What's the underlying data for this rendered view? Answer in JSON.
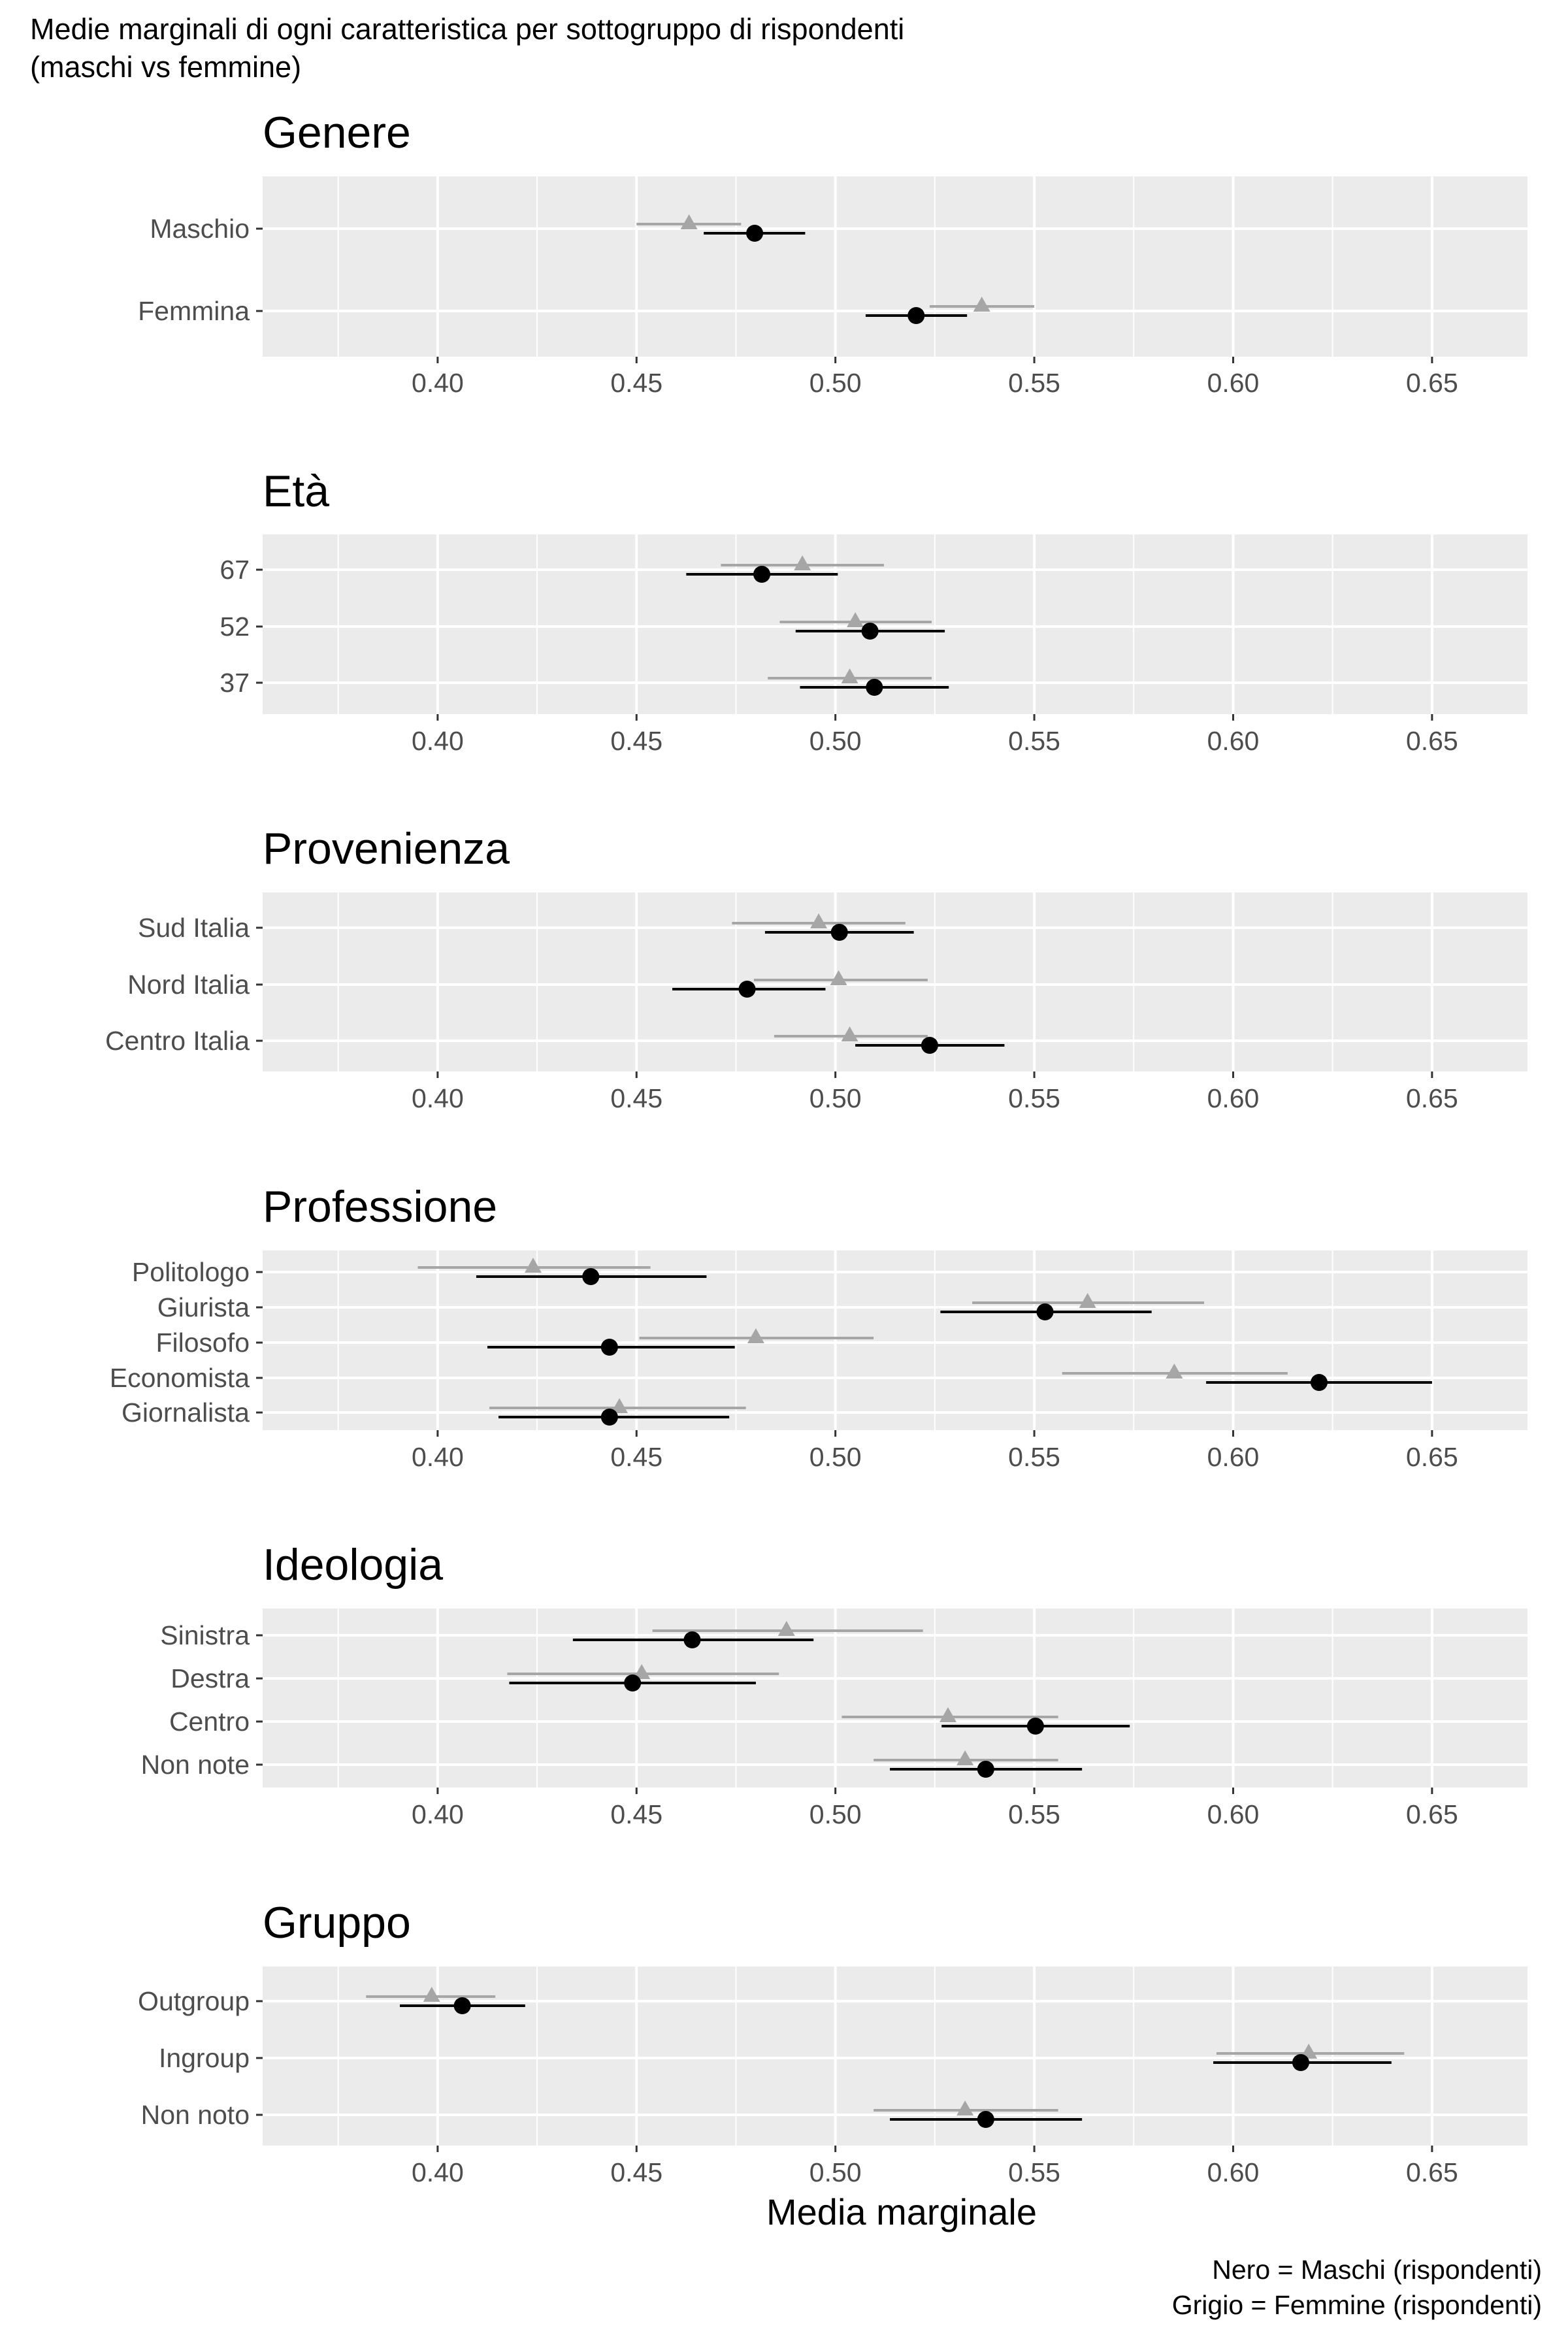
{
  "header": {
    "title_line1": "Medie marginali di ogni caratteristica per sottogruppo di rispondenti",
    "title_line2": "(maschi vs femmine)"
  },
  "caption": {
    "line1": "Nero = Maschi (rispondenti)",
    "line2": "Grigio = Femmine (rispondenti)"
  },
  "colors": {
    "panel_background": "#ebebeb",
    "gridline": "#ffffff",
    "maschi": "#000000",
    "femmine": "#a6a6a6",
    "tick_text": "#4d4d4d"
  },
  "chart_data": {
    "type": "scatter",
    "subtype": "point-range (marginal means with confidence intervals), faceted",
    "xlabel": "Media marginale",
    "xlim": [
      0.356,
      0.674
    ],
    "xticks": [
      "0.40",
      "0.45",
      "0.50",
      "0.55",
      "0.60",
      "0.65"
    ],
    "grid": true,
    "legend": "none (caption bottom-right)",
    "series": [
      {
        "key": "maschi",
        "marker": "circle"
      },
      {
        "key": "femmine",
        "marker": "triangle"
      }
    ],
    "panels": [
      {
        "title": "Genere",
        "categories": [
          "Maschio",
          "Femmina"
        ],
        "maschi": [
          {
            "estimate": 0.4797,
            "lower": 0.4669,
            "upper": 0.4924
          },
          {
            "estimate": 0.5203,
            "lower": 0.5076,
            "upper": 0.5331
          }
        ],
        "femmine": [
          {
            "estimate": 0.4632,
            "lower": 0.45,
            "upper": 0.4763
          },
          {
            "estimate": 0.5368,
            "lower": 0.5237,
            "upper": 0.55
          }
        ]
      },
      {
        "title": "Età",
        "categories": [
          "67",
          "52",
          "37"
        ],
        "maschi": [
          {
            "estimate": 0.4815,
            "lower": 0.4625,
            "upper": 0.5006
          },
          {
            "estimate": 0.5087,
            "lower": 0.49,
            "upper": 0.5275
          },
          {
            "estimate": 0.5098,
            "lower": 0.4911,
            "upper": 0.5285
          }
        ],
        "femmine": [
          {
            "estimate": 0.4917,
            "lower": 0.4712,
            "upper": 0.5122
          },
          {
            "estimate": 0.505,
            "lower": 0.486,
            "upper": 0.5242
          },
          {
            "estimate": 0.5036,
            "lower": 0.483,
            "upper": 0.5242
          }
        ]
      },
      {
        "title": "Provenienza",
        "categories": [
          "Sud Italia",
          "Nord Italia",
          "Centro Italia"
        ],
        "maschi": [
          {
            "estimate": 0.501,
            "lower": 0.4823,
            "upper": 0.5197
          },
          {
            "estimate": 0.4778,
            "lower": 0.459,
            "upper": 0.4975
          },
          {
            "estimate": 0.5237,
            "lower": 0.505,
            "upper": 0.5425
          }
        ],
        "femmine": [
          {
            "estimate": 0.4958,
            "lower": 0.474,
            "upper": 0.5176
          },
          {
            "estimate": 0.5008,
            "lower": 0.4795,
            "upper": 0.5232
          },
          {
            "estimate": 0.5036,
            "lower": 0.4846,
            "upper": 0.5232
          }
        ]
      },
      {
        "title": "Professione",
        "categories": [
          "Politologo",
          "Giurista",
          "Filosofo",
          "Economista",
          "Giornalista"
        ],
        "maschi": [
          {
            "estimate": 0.4385,
            "lower": 0.4097,
            "upper": 0.4676
          },
          {
            "estimate": 0.5527,
            "lower": 0.5264,
            "upper": 0.5795
          },
          {
            "estimate": 0.4432,
            "lower": 0.4125,
            "upper": 0.4747
          },
          {
            "estimate": 0.6216,
            "lower": 0.5932,
            "upper": 0.65
          },
          {
            "estimate": 0.4432,
            "lower": 0.4153,
            "upper": 0.4733
          }
        ],
        "femmine": [
          {
            "estimate": 0.424,
            "lower": 0.395,
            "upper": 0.4535
          },
          {
            "estimate": 0.5634,
            "lower": 0.5344,
            "upper": 0.5927
          },
          {
            "estimate": 0.48,
            "lower": 0.4507,
            "upper": 0.5096
          },
          {
            "estimate": 0.5852,
            "lower": 0.557,
            "upper": 0.6137
          },
          {
            "estimate": 0.4457,
            "lower": 0.413,
            "upper": 0.4775
          }
        ]
      },
      {
        "title": "Ideologia",
        "categories": [
          "Sinistra",
          "Destra",
          "Centro",
          "Non note"
        ],
        "maschi": [
          {
            "estimate": 0.464,
            "lower": 0.434,
            "upper": 0.4945
          },
          {
            "estimate": 0.449,
            "lower": 0.418,
            "upper": 0.48
          },
          {
            "estimate": 0.5503,
            "lower": 0.5267,
            "upper": 0.574
          },
          {
            "estimate": 0.5378,
            "lower": 0.5137,
            "upper": 0.562
          }
        ],
        "femmine": [
          {
            "estimate": 0.4877,
            "lower": 0.454,
            "upper": 0.522
          },
          {
            "estimate": 0.4513,
            "lower": 0.4175,
            "upper": 0.4858
          },
          {
            "estimate": 0.5283,
            "lower": 0.5016,
            "upper": 0.556
          },
          {
            "estimate": 0.5326,
            "lower": 0.5096,
            "upper": 0.556
          }
        ]
      },
      {
        "title": "Gruppo",
        "categories": [
          "Outgroup",
          "Ingroup",
          "Non noto"
        ],
        "maschi": [
          {
            "estimate": 0.4062,
            "lower": 0.3905,
            "upper": 0.422
          },
          {
            "estimate": 0.617,
            "lower": 0.595,
            "upper": 0.6398
          },
          {
            "estimate": 0.5378,
            "lower": 0.5137,
            "upper": 0.562
          }
        ],
        "femmine": [
          {
            "estimate": 0.3985,
            "lower": 0.382,
            "upper": 0.4145
          },
          {
            "estimate": 0.619,
            "lower": 0.5958,
            "upper": 0.643
          },
          {
            "estimate": 0.5326,
            "lower": 0.5096,
            "upper": 0.556
          }
        ]
      }
    ]
  }
}
